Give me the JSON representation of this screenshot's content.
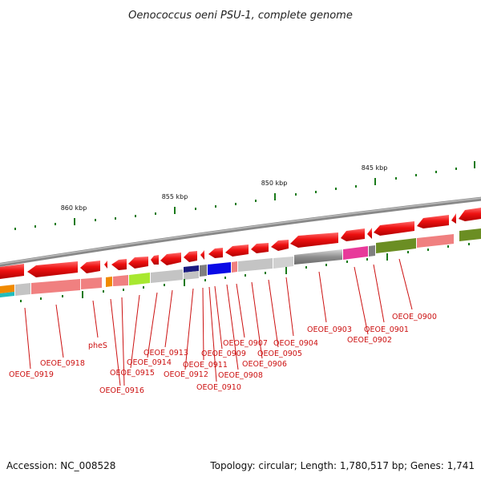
{
  "title": "Oenococcus oeni PSU-1, complete genome",
  "footer": {
    "accession": "Accession: NC_008528",
    "summary": "Topology: circular; Length: 1,780,517 bp; Genes: 1,741"
  },
  "scale_ticks": [
    {
      "label": "860 kbp"
    },
    {
      "label": "855 kbp"
    },
    {
      "label": "850 kbp"
    },
    {
      "label": "845 kbp"
    }
  ],
  "gene_labels": [
    "OEOE_0900",
    "OEOE_0901",
    "OEOE_0902",
    "OEOE_0903",
    "OEOE_0904",
    "OEOE_0905",
    "OEOE_0906",
    "OEOE_0907",
    "OEOE_0908",
    "OEOE_0909",
    "OEOE_0910",
    "OEOE_0911",
    "OEOE_0912",
    "OEOE_0913",
    "OEOE_0914",
    "OEOE_0915",
    "OEOE_0916",
    "pheS",
    "OEOE_0918",
    "OEOE_0919"
  ],
  "colors": {
    "gene_arrow": "#ee1111",
    "backbone": "#888888",
    "tick": "#1a7a1a",
    "label": "#cc1111"
  }
}
